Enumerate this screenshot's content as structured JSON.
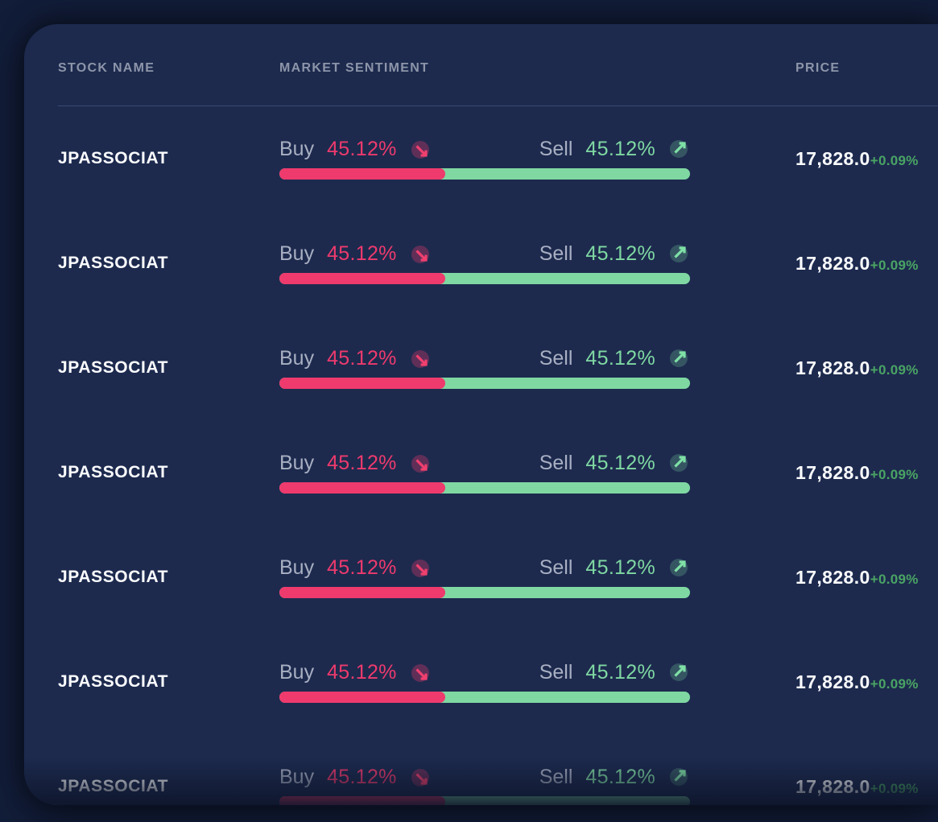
{
  "table": {
    "columns": [
      {
        "key": "stock",
        "label": "STOCK NAME"
      },
      {
        "key": "sentiment",
        "label": "MARKET SENTIMENT"
      },
      {
        "key": "price",
        "label": "PRICE"
      }
    ],
    "rows": [
      {
        "stock": "JPASSOCIAT",
        "buy_label": "Buy",
        "buy_pct": "45.12%",
        "sell_label": "Sell",
        "sell_pct": "45.12%",
        "buy_bar_pct": 40.4,
        "price": "17,828.0",
        "change": "+0.09%"
      },
      {
        "stock": "JPASSOCIAT",
        "buy_label": "Buy",
        "buy_pct": "45.12%",
        "sell_label": "Sell",
        "sell_pct": "45.12%",
        "buy_bar_pct": 40.4,
        "price": "17,828.0",
        "change": "+0.09%"
      },
      {
        "stock": "JPASSOCIAT",
        "buy_label": "Buy",
        "buy_pct": "45.12%",
        "sell_label": "Sell",
        "sell_pct": "45.12%",
        "buy_bar_pct": 40.4,
        "price": "17,828.0",
        "change": "+0.09%"
      },
      {
        "stock": "JPASSOCIAT",
        "buy_label": "Buy",
        "buy_pct": "45.12%",
        "sell_label": "Sell",
        "sell_pct": "45.12%",
        "buy_bar_pct": 40.4,
        "price": "17,828.0",
        "change": "+0.09%"
      },
      {
        "stock": "JPASSOCIAT",
        "buy_label": "Buy",
        "buy_pct": "45.12%",
        "sell_label": "Sell",
        "sell_pct": "45.12%",
        "buy_bar_pct": 40.4,
        "price": "17,828.0",
        "change": "+0.09%"
      },
      {
        "stock": "JPASSOCIAT",
        "buy_label": "Buy",
        "buy_pct": "45.12%",
        "sell_label": "Sell",
        "sell_pct": "45.12%",
        "buy_bar_pct": 40.4,
        "price": "17,828.0",
        "change": "+0.09%"
      },
      {
        "stock": "JPASSOCIAT",
        "buy_label": "Buy",
        "buy_pct": "45.12%",
        "sell_label": "Sell",
        "sell_pct": "45.12%",
        "buy_bar_pct": 40.4,
        "price": "17,828.0",
        "change": "+0.09%"
      }
    ]
  },
  "icons": {
    "buy": "arrow-down-right",
    "sell": "arrow-up-right"
  },
  "colors": {
    "card_bg": "#1d2a4e",
    "buy_pink": "#ee3a6d",
    "sell_green": "#7fd8a2",
    "change_green": "#4aa464"
  }
}
